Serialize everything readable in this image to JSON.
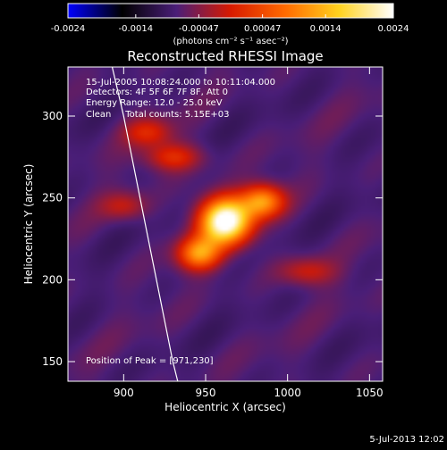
{
  "colorbar": {
    "min": -0.0024,
    "max": 0.0024,
    "tick_labels": [
      "-0.0024",
      "-0.0014",
      "-0.00047",
      "0.00047",
      "0.0014",
      "0.0024"
    ],
    "unit_label": "(photons cm⁻² s⁻¹ asec⁻²)",
    "colormap": [
      "#0000ff",
      "#000000",
      "#4a1e78",
      "#d81a00",
      "#ff6a00",
      "#ffd21e",
      "#ffffff"
    ]
  },
  "chart_data": {
    "type": "heatmap",
    "title": "Reconstructed RHESSI Image",
    "xlabel": "Heliocentric X (arcsec)",
    "ylabel": "Heliocentric Y (arcsec)",
    "xlim": [
      866,
      1058
    ],
    "ylim": [
      138,
      330
    ],
    "x_ticks": [
      900,
      950,
      1000,
      1050
    ],
    "y_ticks": [
      150,
      200,
      250,
      300
    ],
    "annotations": [
      "15-Jul-2005 10:08:24.000 to 10:11:04.000",
      "Detectors: 4F 5F 6F 7F 8F, Att 0",
      "Energy Range: 12.0 - 25.0 keV",
      "Clean     Total counts: 5.15E+03"
    ],
    "peak_label": "Position of Peak = [971,230]",
    "peak": [
      971,
      230
    ],
    "limb_curve": [
      [
        893,
        330
      ],
      [
        900,
        300
      ],
      [
        906,
        270
      ],
      [
        912,
        240
      ],
      [
        918,
        210
      ],
      [
        924,
        180
      ],
      [
        930,
        150
      ],
      [
        933,
        138
      ]
    ],
    "sources": [
      {
        "x": 962,
        "y": 236,
        "amplitude": 1.0,
        "sigma_x": 11,
        "sigma_y": 10
      },
      {
        "x": 985,
        "y": 248,
        "amplitude": 0.55,
        "sigma_x": 9,
        "sigma_y": 7
      },
      {
        "x": 946,
        "y": 216,
        "amplitude": 0.55,
        "sigma_x": 9,
        "sigma_y": 7
      },
      {
        "x": 930,
        "y": 275,
        "amplitude": 0.3,
        "sigma_x": 12,
        "sigma_y": 6
      },
      {
        "x": 915,
        "y": 290,
        "amplitude": 0.25,
        "sigma_x": 10,
        "sigma_y": 6
      },
      {
        "x": 1012,
        "y": 205,
        "amplitude": 0.22,
        "sigma_x": 12,
        "sigma_y": 6
      },
      {
        "x": 900,
        "y": 245,
        "amplitude": 0.2,
        "sigma_x": 10,
        "sigma_y": 6
      }
    ],
    "background_amplitude": 0.08
  },
  "footer": {
    "timestamp": "5-Jul-2013 12:02"
  }
}
